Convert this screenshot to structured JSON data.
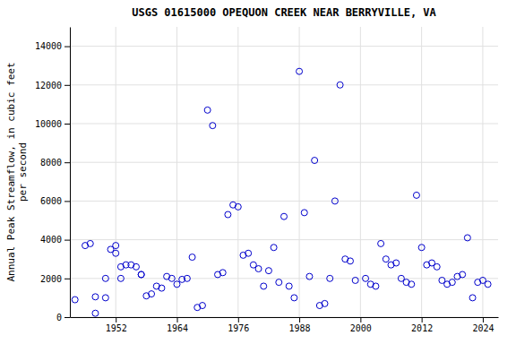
{
  "chart_data": {
    "type": "scatter",
    "title": "USGS 01615000 OPEQUON CREEK NEAR BERRYVILLE, VA",
    "ylabel": [
      "Annual Peak Streamflow, in cubic feet",
      "per second"
    ],
    "x": [
      1944,
      1946,
      1947,
      1948,
      1948,
      1950,
      1950,
      1951,
      1952,
      1952,
      1953,
      1953,
      1954,
      1955,
      1956,
      1957,
      1957,
      1958,
      1959,
      1960,
      1961,
      1962,
      1963,
      1964,
      1965,
      1966,
      1967,
      1968,
      1969,
      1970,
      1971,
      1972,
      1973,
      1974,
      1975,
      1976,
      1977,
      1978,
      1979,
      1980,
      1981,
      1982,
      1983,
      1984,
      1985,
      1986,
      1987,
      1988,
      1989,
      1990,
      1991,
      1992,
      1993,
      1994,
      1995,
      1996,
      1997,
      1998,
      1999,
      2001,
      2002,
      2003,
      2004,
      2005,
      2006,
      2007,
      2008,
      2009,
      2010,
      2011,
      2012,
      2013,
      2014,
      2015,
      2016,
      2017,
      2018,
      2019,
      2020,
      2021,
      2022,
      2023,
      2024,
      2025
    ],
    "values": [
      900,
      3700,
      3800,
      1050,
      200,
      2000,
      1000,
      3500,
      3700,
      3300,
      2600,
      2000,
      2700,
      2700,
      2600,
      2200,
      2200,
      1100,
      1200,
      1600,
      1500,
      2100,
      2000,
      1700,
      1950,
      2000,
      3100,
      500,
      600,
      10700,
      9900,
      2200,
      2300,
      5300,
      5800,
      5700,
      3200,
      3300,
      2700,
      2500,
      1600,
      2400,
      3600,
      1800,
      5200,
      1600,
      1000,
      12700,
      5400,
      2100,
      8100,
      600,
      700,
      2000,
      6000,
      12000,
      3000,
      2900,
      1900,
      2000,
      1700,
      1600,
      3800,
      3000,
      2700,
      2800,
      2000,
      1800,
      1700,
      6300,
      3600,
      2700,
      2800,
      2600,
      1900,
      1700,
      1800,
      2100,
      2200,
      4100,
      1000,
      1800,
      1900,
      1700
    ],
    "color": "#0000cc",
    "marker": "open-circle",
    "xlim": [
      1943,
      2027
    ],
    "ylim": [
      0,
      15000
    ],
    "xticks": [
      1952,
      1964,
      1976,
      1988,
      2000,
      2012,
      2024
    ],
    "yticks": [
      0,
      2000,
      4000,
      6000,
      8000,
      10000,
      12000,
      14000
    ],
    "grid": true
  }
}
